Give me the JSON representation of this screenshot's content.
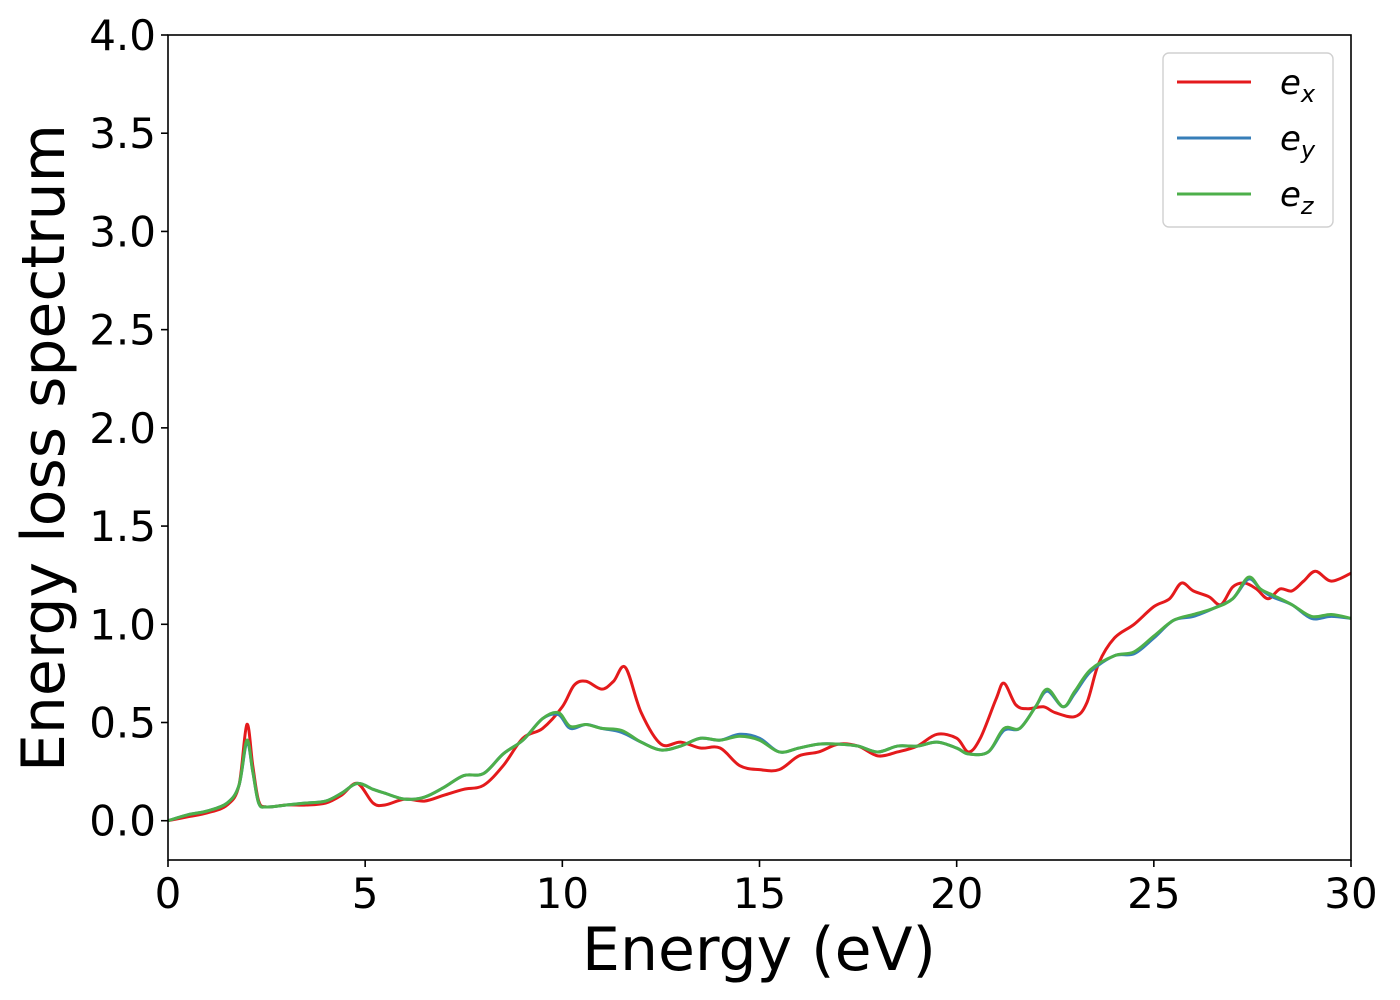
{
  "chart_data": {
    "type": "line",
    "xlabel": "Energy (eV)",
    "ylabel": "Energy loss spectrum",
    "xlim": [
      0,
      30
    ],
    "ylim": [
      -0.2,
      4.0
    ],
    "x_ticks": [
      0,
      5,
      10,
      15,
      20,
      25,
      30
    ],
    "x_tick_labels": [
      "0",
      "5",
      "10",
      "15",
      "20",
      "25",
      "30"
    ],
    "y_ticks": [
      0.0,
      0.5,
      1.0,
      1.5,
      2.0,
      2.5,
      3.0,
      3.5,
      4.0
    ],
    "y_tick_labels": [
      "0.0",
      "0.5",
      "1.0",
      "1.5",
      "2.0",
      "2.5",
      "3.0",
      "3.5",
      "4.0"
    ],
    "grid": false,
    "legend_position": "top-right",
    "series": [
      {
        "name": "e_x",
        "label_base": "e",
        "label_sub": "x",
        "color": "#e41a1c",
        "points": [
          [
            0,
            0.0
          ],
          [
            0.5,
            0.02
          ],
          [
            1.0,
            0.04
          ],
          [
            1.5,
            0.08
          ],
          [
            1.8,
            0.18
          ],
          [
            2.0,
            0.49
          ],
          [
            2.15,
            0.28
          ],
          [
            2.3,
            0.1
          ],
          [
            2.5,
            0.07
          ],
          [
            3.0,
            0.08
          ],
          [
            3.5,
            0.08
          ],
          [
            4.0,
            0.09
          ],
          [
            4.4,
            0.13
          ],
          [
            4.8,
            0.19
          ],
          [
            5.2,
            0.09
          ],
          [
            5.5,
            0.08
          ],
          [
            6.0,
            0.11
          ],
          [
            6.5,
            0.1
          ],
          [
            7.0,
            0.13
          ],
          [
            7.5,
            0.16
          ],
          [
            8.0,
            0.18
          ],
          [
            8.5,
            0.28
          ],
          [
            9.0,
            0.42
          ],
          [
            9.5,
            0.47
          ],
          [
            10.0,
            0.58
          ],
          [
            10.3,
            0.69
          ],
          [
            10.6,
            0.71
          ],
          [
            11.0,
            0.67
          ],
          [
            11.3,
            0.71
          ],
          [
            11.6,
            0.78
          ],
          [
            12.0,
            0.55
          ],
          [
            12.5,
            0.39
          ],
          [
            13.0,
            0.4
          ],
          [
            13.5,
            0.37
          ],
          [
            14.0,
            0.37
          ],
          [
            14.5,
            0.28
          ],
          [
            15.0,
            0.26
          ],
          [
            15.5,
            0.26
          ],
          [
            16.0,
            0.33
          ],
          [
            16.5,
            0.35
          ],
          [
            17.0,
            0.39
          ],
          [
            17.5,
            0.38
          ],
          [
            18.0,
            0.33
          ],
          [
            18.5,
            0.35
          ],
          [
            19.0,
            0.38
          ],
          [
            19.5,
            0.44
          ],
          [
            20.0,
            0.42
          ],
          [
            20.3,
            0.35
          ],
          [
            20.6,
            0.42
          ],
          [
            21.0,
            0.62
          ],
          [
            21.2,
            0.7
          ],
          [
            21.5,
            0.59
          ],
          [
            21.8,
            0.57
          ],
          [
            22.2,
            0.58
          ],
          [
            22.5,
            0.55
          ],
          [
            23.0,
            0.53
          ],
          [
            23.3,
            0.6
          ],
          [
            23.6,
            0.8
          ],
          [
            24.0,
            0.93
          ],
          [
            24.5,
            1.0
          ],
          [
            25.0,
            1.09
          ],
          [
            25.4,
            1.13
          ],
          [
            25.7,
            1.21
          ],
          [
            26.0,
            1.17
          ],
          [
            26.4,
            1.14
          ],
          [
            26.7,
            1.1
          ],
          [
            27.0,
            1.19
          ],
          [
            27.3,
            1.21
          ],
          [
            27.6,
            1.18
          ],
          [
            27.9,
            1.13
          ],
          [
            28.2,
            1.18
          ],
          [
            28.5,
            1.17
          ],
          [
            28.8,
            1.22
          ],
          [
            29.1,
            1.27
          ],
          [
            29.5,
            1.22
          ],
          [
            30.0,
            1.26
          ]
        ]
      },
      {
        "name": "e_y",
        "label_base": "e",
        "label_sub": "y",
        "color": "#377eb8",
        "points": [
          [
            0,
            0.0
          ],
          [
            0.5,
            0.03
          ],
          [
            1.0,
            0.05
          ],
          [
            1.5,
            0.09
          ],
          [
            1.8,
            0.18
          ],
          [
            2.0,
            0.4
          ],
          [
            2.15,
            0.25
          ],
          [
            2.3,
            0.09
          ],
          [
            2.5,
            0.07
          ],
          [
            3.0,
            0.08
          ],
          [
            3.5,
            0.09
          ],
          [
            4.0,
            0.1
          ],
          [
            4.4,
            0.14
          ],
          [
            4.8,
            0.19
          ],
          [
            5.2,
            0.16
          ],
          [
            5.5,
            0.14
          ],
          [
            6.0,
            0.11
          ],
          [
            6.5,
            0.12
          ],
          [
            7.0,
            0.17
          ],
          [
            7.5,
            0.23
          ],
          [
            8.0,
            0.24
          ],
          [
            8.5,
            0.34
          ],
          [
            9.0,
            0.41
          ],
          [
            9.5,
            0.52
          ],
          [
            9.9,
            0.54
          ],
          [
            10.2,
            0.47
          ],
          [
            10.6,
            0.49
          ],
          [
            11.0,
            0.47
          ],
          [
            11.5,
            0.45
          ],
          [
            12.0,
            0.4
          ],
          [
            12.5,
            0.36
          ],
          [
            13.0,
            0.38
          ],
          [
            13.5,
            0.42
          ],
          [
            14.0,
            0.41
          ],
          [
            14.5,
            0.44
          ],
          [
            15.0,
            0.42
          ],
          [
            15.5,
            0.35
          ],
          [
            16.0,
            0.37
          ],
          [
            16.5,
            0.39
          ],
          [
            17.0,
            0.39
          ],
          [
            17.5,
            0.38
          ],
          [
            18.0,
            0.35
          ],
          [
            18.5,
            0.38
          ],
          [
            19.0,
            0.38
          ],
          [
            19.5,
            0.4
          ],
          [
            20.0,
            0.37
          ],
          [
            20.3,
            0.34
          ],
          [
            20.8,
            0.35
          ],
          [
            21.2,
            0.46
          ],
          [
            21.6,
            0.47
          ],
          [
            22.0,
            0.58
          ],
          [
            22.3,
            0.66
          ],
          [
            22.7,
            0.58
          ],
          [
            23.0,
            0.65
          ],
          [
            23.4,
            0.76
          ],
          [
            24.0,
            0.84
          ],
          [
            24.5,
            0.85
          ],
          [
            25.0,
            0.93
          ],
          [
            25.5,
            1.02
          ],
          [
            26.0,
            1.04
          ],
          [
            26.5,
            1.08
          ],
          [
            27.0,
            1.13
          ],
          [
            27.4,
            1.23
          ],
          [
            27.7,
            1.18
          ],
          [
            28.0,
            1.14
          ],
          [
            28.5,
            1.1
          ],
          [
            29.0,
            1.03
          ],
          [
            29.5,
            1.04
          ],
          [
            30.0,
            1.03
          ]
        ]
      },
      {
        "name": "e_z",
        "label_base": "e",
        "label_sub": "z",
        "color": "#4daf4a",
        "points": [
          [
            0,
            0.0
          ],
          [
            0.5,
            0.03
          ],
          [
            1.0,
            0.05
          ],
          [
            1.5,
            0.09
          ],
          [
            1.8,
            0.18
          ],
          [
            2.0,
            0.41
          ],
          [
            2.15,
            0.25
          ],
          [
            2.3,
            0.09
          ],
          [
            2.5,
            0.07
          ],
          [
            3.0,
            0.08
          ],
          [
            3.5,
            0.09
          ],
          [
            4.0,
            0.1
          ],
          [
            4.4,
            0.14
          ],
          [
            4.8,
            0.19
          ],
          [
            5.2,
            0.16
          ],
          [
            5.5,
            0.14
          ],
          [
            6.0,
            0.11
          ],
          [
            6.5,
            0.12
          ],
          [
            7.0,
            0.17
          ],
          [
            7.5,
            0.23
          ],
          [
            8.0,
            0.24
          ],
          [
            8.5,
            0.34
          ],
          [
            9.0,
            0.41
          ],
          [
            9.5,
            0.52
          ],
          [
            9.9,
            0.55
          ],
          [
            10.2,
            0.48
          ],
          [
            10.6,
            0.49
          ],
          [
            11.0,
            0.47
          ],
          [
            11.5,
            0.46
          ],
          [
            12.0,
            0.4
          ],
          [
            12.5,
            0.36
          ],
          [
            13.0,
            0.38
          ],
          [
            13.5,
            0.42
          ],
          [
            14.0,
            0.41
          ],
          [
            14.5,
            0.43
          ],
          [
            15.0,
            0.41
          ],
          [
            15.5,
            0.35
          ],
          [
            16.0,
            0.37
          ],
          [
            16.5,
            0.39
          ],
          [
            17.0,
            0.39
          ],
          [
            17.5,
            0.38
          ],
          [
            18.0,
            0.35
          ],
          [
            18.5,
            0.38
          ],
          [
            19.0,
            0.38
          ],
          [
            19.5,
            0.4
          ],
          [
            20.0,
            0.37
          ],
          [
            20.3,
            0.34
          ],
          [
            20.8,
            0.35
          ],
          [
            21.2,
            0.47
          ],
          [
            21.6,
            0.47
          ],
          [
            22.0,
            0.58
          ],
          [
            22.3,
            0.67
          ],
          [
            22.7,
            0.58
          ],
          [
            23.0,
            0.66
          ],
          [
            23.4,
            0.77
          ],
          [
            24.0,
            0.84
          ],
          [
            24.5,
            0.86
          ],
          [
            25.0,
            0.94
          ],
          [
            25.5,
            1.02
          ],
          [
            26.0,
            1.05
          ],
          [
            26.5,
            1.08
          ],
          [
            27.0,
            1.13
          ],
          [
            27.4,
            1.24
          ],
          [
            27.7,
            1.18
          ],
          [
            28.0,
            1.15
          ],
          [
            28.5,
            1.1
          ],
          [
            29.0,
            1.04
          ],
          [
            29.5,
            1.05
          ],
          [
            30.0,
            1.03
          ]
        ]
      }
    ]
  }
}
